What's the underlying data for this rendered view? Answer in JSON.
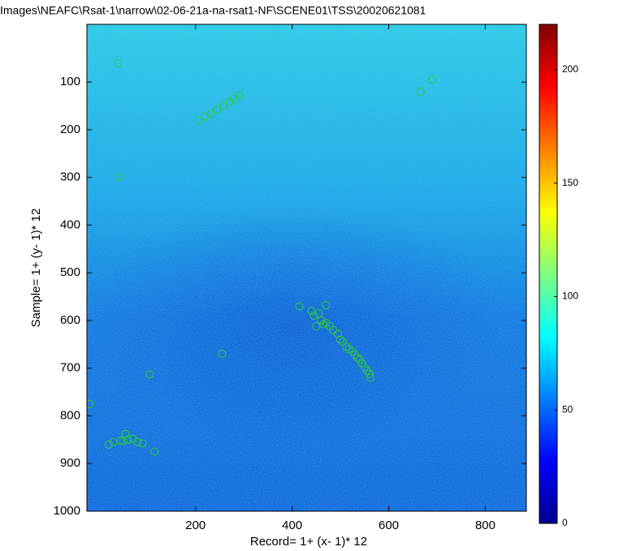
{
  "chart_data": {
    "type": "image",
    "title": "Images\\NEAFC\\Rsat-1\\narrow\\02-06-21a-na-rsat1-NF\\SCENE01\\TSS\\20020621081",
    "x_label": "Record= 1+ (x- 1)* 12",
    "y_label": "Sample= 1+ (y- 1)* 12",
    "xlim": [
      -25,
      885
    ],
    "xticks": [
      200,
      400,
      600,
      800
    ],
    "ylim": [
      -21,
      1000
    ],
    "y_reversed": true,
    "yticks": [
      100,
      200,
      300,
      400,
      500,
      600,
      700,
      800,
      900,
      1000
    ],
    "clim": [
      0,
      220
    ],
    "cticks": [
      0,
      50,
      100,
      150,
      200
    ],
    "colormap": "jet",
    "points": {
      "color": "#2ecc2e",
      "x": [
        40,
        690,
        666,
        42,
        207,
        220,
        232,
        245,
        258,
        270,
        280,
        290,
        415,
        440,
        445,
        450,
        455,
        460,
        465,
        470,
        470,
        478,
        485,
        495,
        500,
        505,
        512,
        518,
        525,
        530,
        535,
        540,
        545,
        550,
        555,
        560,
        562,
        255,
        105,
        -20,
        20,
        30,
        45,
        50,
        55,
        60,
        70,
        80,
        90,
        115
      ],
      "y": [
        60,
        95,
        120,
        299,
        180,
        172,
        166,
        158,
        150,
        142,
        135,
        128,
        570,
        580,
        590,
        612,
        585,
        600,
        608,
        568,
        605,
        612,
        620,
        628,
        640,
        645,
        655,
        660,
        665,
        672,
        678,
        682,
        690,
        698,
        705,
        712,
        720,
        670,
        713,
        775,
        860,
        855,
        852,
        853,
        838,
        850,
        848,
        855,
        858,
        875
      ]
    }
  }
}
